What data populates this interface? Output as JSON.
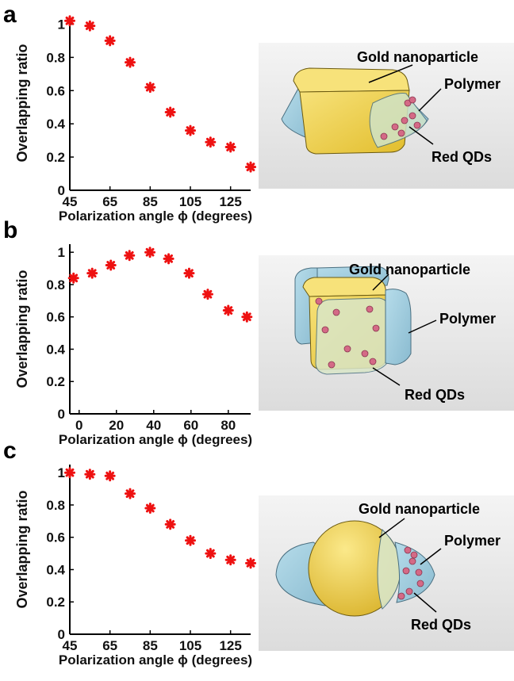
{
  "figure": {
    "panels": [
      {
        "letter": "a",
        "labels": {
          "gold": "Gold nanoparticle",
          "polymer": "Polymer",
          "qds": "Red QDs"
        }
      },
      {
        "letter": "b",
        "labels": {
          "gold": "Gold nanoparticle",
          "polymer": "Polymer",
          "qds": "Red QDs"
        }
      },
      {
        "letter": "c",
        "labels": {
          "gold": "Gold nanoparticle",
          "polymer": "Polymer",
          "qds": "Red QDs"
        }
      }
    ]
  },
  "colors": {
    "marker": "#ee1111",
    "gold": "#f2d34b",
    "polymer": "#9cc9dc",
    "qd": "#d46a86",
    "render_bg": "#e9e9e9"
  },
  "chart_data": [
    {
      "type": "scatter",
      "xlabel": "Polarization angle ϕ (degrees)",
      "ylabel": "Overlapping ratio",
      "xlim": [
        45,
        135
      ],
      "ylim": [
        0,
        1.05
      ],
      "xticks": [
        45,
        65,
        85,
        105,
        125
      ],
      "yticks": [
        0,
        0.2,
        0.4,
        0.6,
        0.8,
        1
      ],
      "ytick_labels": [
        "0",
        "0.2",
        "0.4",
        "0.6",
        "0.8",
        "1"
      ],
      "x": [
        45,
        55,
        65,
        75,
        85,
        95,
        105,
        115,
        125,
        135
      ],
      "y": [
        1.02,
        0.99,
        0.9,
        0.77,
        0.62,
        0.47,
        0.36,
        0.29,
        0.26,
        0.14
      ]
    },
    {
      "type": "scatter",
      "xlabel": "Polarization angle ϕ (degrees)",
      "ylabel": "Overlapping ratio",
      "xlim": [
        -5,
        92
      ],
      "ylim": [
        0,
        1.05
      ],
      "xticks": [
        0,
        20,
        40,
        60,
        80
      ],
      "yticks": [
        0,
        0.2,
        0.4,
        0.6,
        0.8,
        1
      ],
      "ytick_labels": [
        "0",
        "0.2",
        "0.4",
        "0.6",
        "0.8",
        "1"
      ],
      "x": [
        -3,
        7,
        17,
        27,
        38,
        48,
        59,
        69,
        80,
        90
      ],
      "y": [
        0.84,
        0.87,
        0.92,
        0.98,
        1.0,
        0.96,
        0.87,
        0.74,
        0.64,
        0.6
      ]
    },
    {
      "type": "scatter",
      "xlabel": "Polarization angle ϕ (degrees)",
      "ylabel": "Overlapping ratio",
      "xlim": [
        45,
        135
      ],
      "ylim": [
        0,
        1.05
      ],
      "xticks": [
        45,
        65,
        85,
        105,
        125
      ],
      "yticks": [
        0,
        0.2,
        0.4,
        0.6,
        0.8,
        1
      ],
      "ytick_labels": [
        "0",
        "0.2",
        "0.4",
        "0.6",
        "0.8",
        "1"
      ],
      "x": [
        45,
        55,
        65,
        75,
        85,
        95,
        105,
        115,
        125,
        135
      ],
      "y": [
        1.0,
        0.99,
        0.98,
        0.87,
        0.78,
        0.68,
        0.58,
        0.5,
        0.46,
        0.44
      ]
    }
  ]
}
